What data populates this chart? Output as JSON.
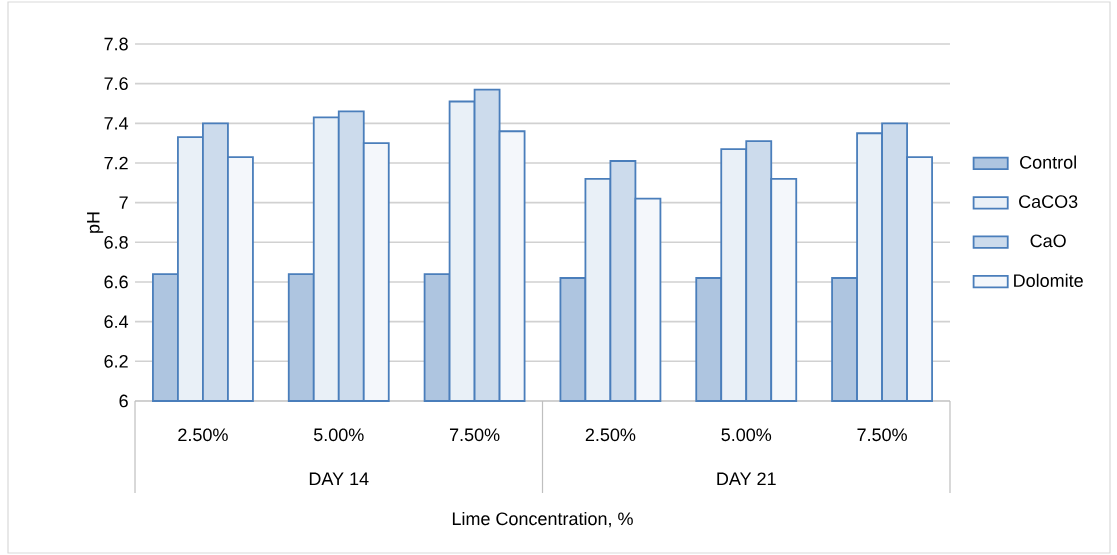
{
  "chart_data": {
    "type": "bar",
    "xlabel": "Lime Concentration, %",
    "ylabel": "pH",
    "categories": [
      "2.50%",
      "5.00%",
      "7.50%",
      "2.50%",
      "5.00%",
      "7.50%"
    ],
    "annotations": [
      "DAY 14",
      "DAY 21"
    ],
    "series": [
      {
        "name": "Control",
        "color": "#4a7ebb",
        "values": [
          6.64,
          6.64,
          6.64,
          6.62,
          6.62,
          6.62
        ]
      },
      {
        "name": "CaCO3",
        "color": "#4a7ebb",
        "values": [
          7.33,
          7.43,
          7.51,
          7.12,
          7.27,
          7.35
        ]
      },
      {
        "name": "CaO",
        "color": "#4a7ebb",
        "values": [
          7.4,
          7.46,
          7.57,
          7.21,
          7.31,
          7.4
        ]
      },
      {
        "name": "Dolomite",
        "color": "#4a7ebb",
        "values": [
          7.23,
          7.3,
          7.36,
          7.02,
          7.12,
          7.23
        ]
      }
    ],
    "ylim": [
      6,
      7.8
    ],
    "yticks": [
      6,
      6.2,
      6.4,
      6.6,
      6.8,
      7,
      7.2,
      7.4,
      7.6,
      7.8
    ],
    "grid": "y",
    "legend": "right"
  }
}
